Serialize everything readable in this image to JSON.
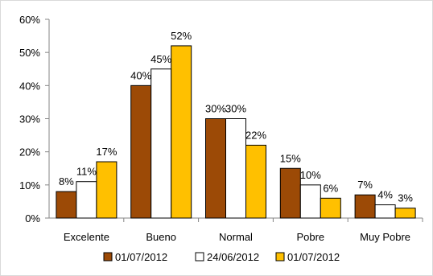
{
  "chart_data": {
    "type": "bar",
    "categories": [
      "Excelente",
      "Bueno",
      "Normal",
      "Pobre",
      "Muy Pobre"
    ],
    "series": [
      {
        "name": "01/07/2012",
        "color": "#9c4a06",
        "values": [
          8,
          40,
          30,
          15,
          7
        ]
      },
      {
        "name": "24/06/2012",
        "color": "#ffffff",
        "values": [
          11,
          45,
          30,
          10,
          4
        ]
      },
      {
        "name": "01/07/2012",
        "color": "#ffc000",
        "values": [
          17,
          52,
          22,
          6,
          3
        ]
      }
    ],
    "data_labels": [
      [
        "8%",
        "40%",
        "30%",
        "15%",
        "7%"
      ],
      [
        "11%",
        "45%",
        "30%",
        "10%",
        "4%"
      ],
      [
        "17%",
        "52%",
        "22%",
        "6%",
        "3%"
      ]
    ],
    "yticks": [
      "0%",
      "10%",
      "20%",
      "30%",
      "40%",
      "50%",
      "60%"
    ],
    "ylim": [
      0,
      60
    ],
    "grid": false,
    "legend_position": "bottom",
    "title": "",
    "xlabel": "",
    "ylabel": ""
  }
}
